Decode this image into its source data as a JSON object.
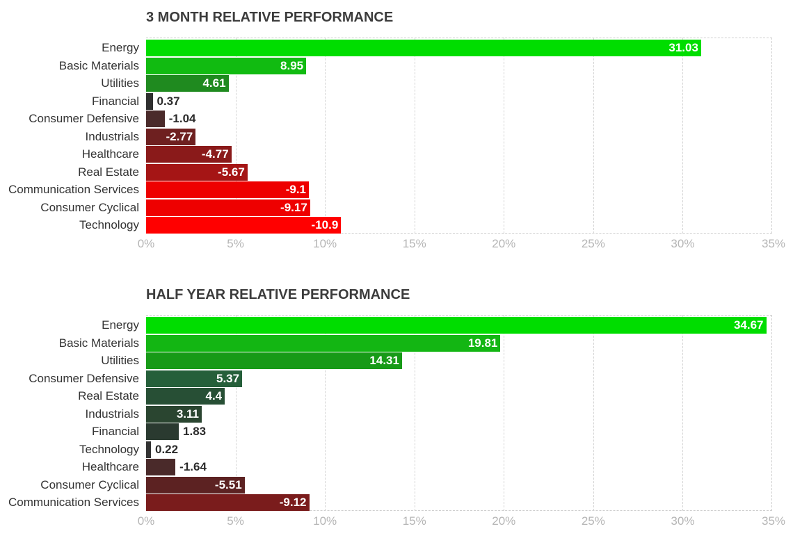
{
  "chart_data": [
    {
      "type": "bar",
      "orientation": "horizontal",
      "title": "3 MONTH RELATIVE PERFORMANCE",
      "categories": [
        "Energy",
        "Basic Materials",
        "Utilities",
        "Financial",
        "Consumer Defensive",
        "Industrials",
        "Healthcare",
        "Real Estate",
        "Communication Services",
        "Consumer Cyclical",
        "Technology"
      ],
      "values": [
        31.03,
        8.95,
        4.61,
        0.37,
        -1.04,
        -2.77,
        -4.77,
        -5.67,
        -9.1,
        -9.17,
        -10.9
      ],
      "value_labels": [
        "31.03",
        "8.95",
        "4.61",
        "0.37",
        "-1.04",
        "-2.77",
        "-4.77",
        "-5.67",
        "-9.1",
        "-9.17",
        "-10.9"
      ],
      "colors": [
        "#00dd00",
        "#11bb11",
        "#1f8a1f",
        "#2f2f2f",
        "#4a2a2a",
        "#6e2020",
        "#8a1a1a",
        "#a51515",
        "#ee0000",
        "#ee0000",
        "#ff0000"
      ],
      "xlim": [
        0,
        35
      ],
      "xticks": [
        "0%",
        "5%",
        "10%",
        "15%",
        "20%",
        "25%",
        "30%",
        "35%"
      ],
      "bar_length": "absolute value",
      "grid": true
    },
    {
      "type": "bar",
      "orientation": "horizontal",
      "title": "HALF YEAR RELATIVE PERFORMANCE",
      "categories": [
        "Energy",
        "Basic Materials",
        "Utilities",
        "Consumer Defensive",
        "Real Estate",
        "Industrials",
        "Financial",
        "Technology",
        "Healthcare",
        "Consumer Cyclical",
        "Communication Services"
      ],
      "values": [
        34.67,
        19.81,
        14.31,
        5.37,
        4.4,
        3.11,
        1.83,
        0.22,
        -1.64,
        -5.51,
        -9.12
      ],
      "value_labels": [
        "34.67",
        "19.81",
        "14.31",
        "5.37",
        "4.4",
        "3.11",
        "1.83",
        "0.22",
        "-1.64",
        "-5.51",
        "-9.12"
      ],
      "colors": [
        "#00dd00",
        "#13b613",
        "#179a17",
        "#255f3a",
        "#274f35",
        "#2a4530",
        "#2a3a30",
        "#333333",
        "#4a2a2a",
        "#5c2222",
        "#7a1c1c"
      ],
      "xlim": [
        0,
        35
      ],
      "xticks": [
        "0%",
        "5%",
        "10%",
        "15%",
        "20%",
        "25%",
        "30%",
        "35%"
      ],
      "bar_length": "absolute value",
      "grid": true
    }
  ]
}
